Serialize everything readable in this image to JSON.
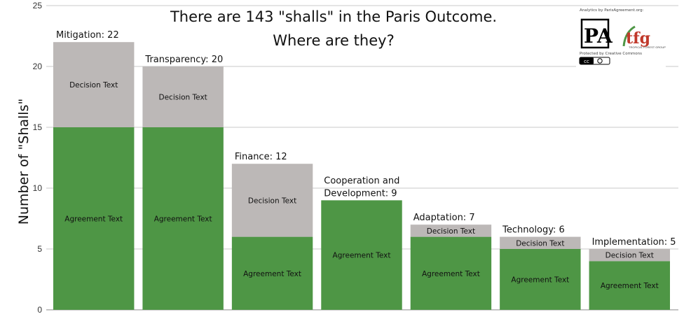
{
  "colors": {
    "agreement": "#4e9645",
    "decision": "#bcb8b7",
    "grid": "#c8c8c8",
    "axis": "#888888",
    "tfg_red": "#c0392b",
    "tfg_green": "#4e9645"
  },
  "branding": {
    "analytics_credit": "Analytics by ParisAgreement.org:",
    "pa_logo": "PA",
    "tfg_logo": "tfg",
    "tfg_tagline": "TROPICAL FOREST GROUP",
    "cc_credit": "Protected by Creative Commons",
    "cc_badge": "cc"
  },
  "chart_data": {
    "type": "bar",
    "stacked": true,
    "title": "There are 143 \"shalls\" in the Paris Outcome.",
    "subtitle": "Where are they?",
    "xlabel": "",
    "ylabel": "Number of  \"Shalls\"",
    "ylim": [
      0,
      25
    ],
    "yticks": [
      "0",
      "5",
      "10",
      "15",
      "20",
      "25"
    ],
    "grid": true,
    "legend": "none",
    "categories": [
      "Mitigation: 22",
      "Transparency: 20",
      "Finance: 12",
      "Cooperation and Development: 9",
      "Adaptation: 7",
      "Technology: 6",
      "Implementation: 5"
    ],
    "category_label_lines": [
      [
        "Mitigation: 22"
      ],
      [
        "Transparency: 20"
      ],
      [
        "Finance: 12"
      ],
      [
        "Cooperation and",
        "Development: 9"
      ],
      [
        "Adaptation: 7"
      ],
      [
        "Technology: 6"
      ],
      [
        "Implementation: 5"
      ]
    ],
    "series": [
      {
        "name": "Agreement Text",
        "segment_label": "Agreement Text",
        "values": [
          15,
          15,
          6,
          9,
          6,
          5,
          4
        ]
      },
      {
        "name": "Decision Text",
        "segment_label": "Decision Text",
        "values": [
          7,
          5,
          6,
          0,
          1,
          1,
          1
        ]
      }
    ]
  }
}
